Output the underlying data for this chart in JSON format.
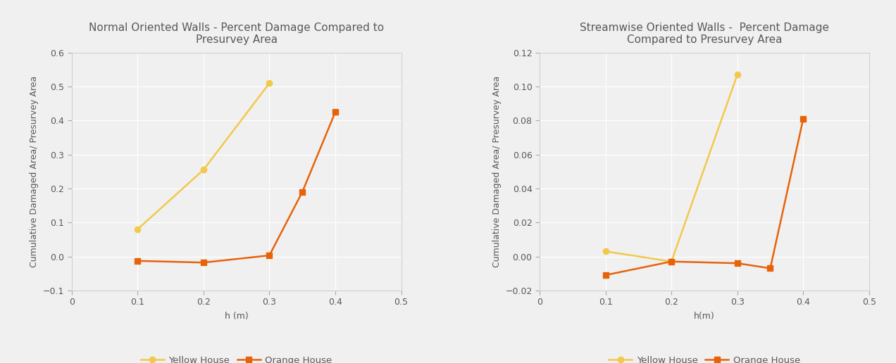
{
  "left": {
    "title": "Normal Oriented Walls - Percent Damage Compared to\nPresurvey Area",
    "xlabel": "h (m)",
    "ylabel": "Cumulative Damaged Area/ Presurvey Area",
    "xlim": [
      0,
      0.5
    ],
    "ylim": [
      -0.1,
      0.6
    ],
    "xticks": [
      0,
      0.1,
      0.2,
      0.3,
      0.4,
      0.5
    ],
    "yticks": [
      -0.1,
      0.0,
      0.1,
      0.2,
      0.3,
      0.4,
      0.5,
      0.6
    ],
    "yellow_x": [
      0.1,
      0.2,
      0.3
    ],
    "yellow_y": [
      0.08,
      0.255,
      0.51
    ],
    "orange_x": [
      0.1,
      0.2,
      0.3,
      0.35,
      0.4
    ],
    "orange_y": [
      -0.013,
      -0.018,
      0.003,
      0.19,
      0.425
    ]
  },
  "right": {
    "title": "Streamwise Oriented Walls -  Percent Damage\nCompared to Presurvey Area",
    "xlabel": "h(m)",
    "ylabel": "Cumulative Damaged Area/ Presurvey Area",
    "xlim": [
      0,
      0.5
    ],
    "ylim": [
      -0.02,
      0.12
    ],
    "xticks": [
      0,
      0.1,
      0.2,
      0.3,
      0.4,
      0.5
    ],
    "yticks": [
      -0.02,
      0.0,
      0.02,
      0.04,
      0.06,
      0.08,
      0.1,
      0.12
    ],
    "yellow_x": [
      0.1,
      0.2,
      0.3
    ],
    "yellow_y": [
      0.003,
      -0.003,
      0.107
    ],
    "orange_x": [
      0.1,
      0.2,
      0.3,
      0.35,
      0.4
    ],
    "orange_y": [
      -0.011,
      -0.003,
      -0.004,
      -0.007,
      0.081
    ]
  },
  "yellow_color": "#f2c94c",
  "orange_color": "#e8620a",
  "marker_yellow": "o",
  "marker_orange": "s",
  "bg_color": "#f0f0f0",
  "plot_bg_color": "#f0f0f0",
  "grid_color": "#ffffff",
  "title_color": "#595959",
  "legend_yellow": "Yellow House",
  "legend_orange": "Orange House",
  "title_fontsize": 11,
  "label_fontsize": 9,
  "tick_fontsize": 9,
  "legend_fontsize": 9.5,
  "linewidth": 1.8,
  "markersize": 6
}
